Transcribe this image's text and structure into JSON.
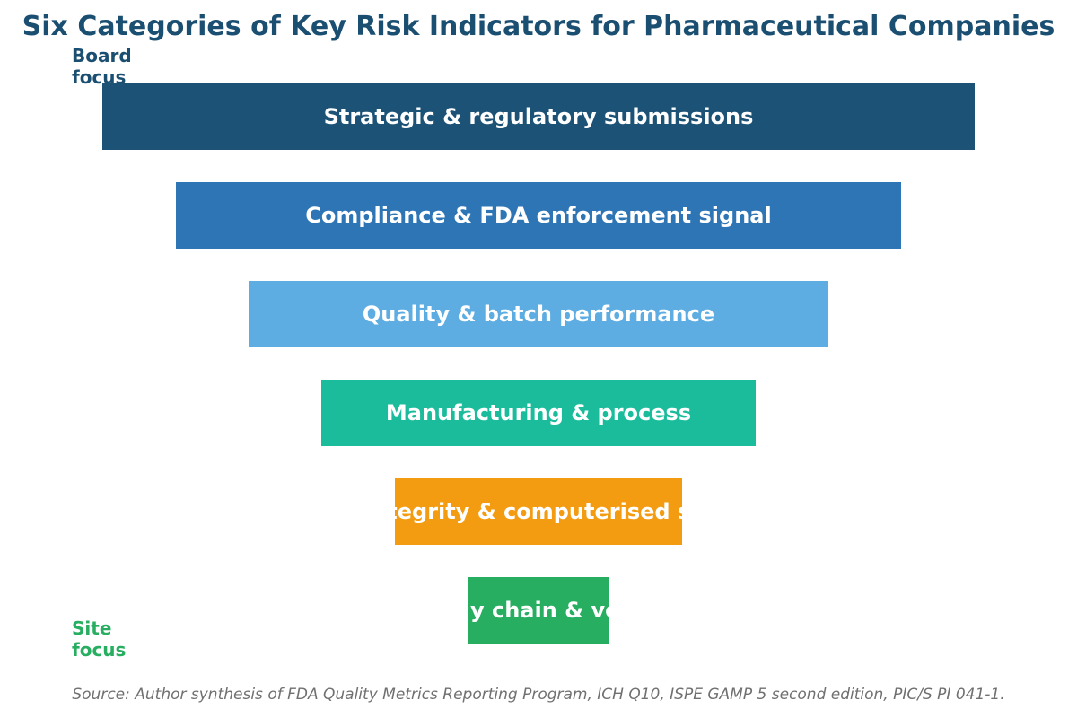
{
  "title": "Six Categories of Key Risk Indicators for Pharmaceutical Companies",
  "top_label": "Board\nfocus",
  "bottom_label": "Site\nfocus",
  "tiers": [
    {
      "label": "Strategic & regulatory submissions",
      "color": "#1b5276"
    },
    {
      "label": "Compliance & FDA enforcement signal",
      "color": "#2e75b6"
    },
    {
      "label": "Quality & batch performance",
      "color": "#5dade2"
    },
    {
      "label": "Manufacturing & process",
      "color": "#1abc9c"
    },
    {
      "label": "Data integrity & computerised systems",
      "color": "#f39c12"
    },
    {
      "label": "Supply chain & vendor",
      "color": "#27ae60"
    }
  ],
  "source": "Source: Author synthesis of FDA Quality Metrics Reporting Program, ICH Q10, ISPE GAMP 5 second edition, PIC/S PI 041-1."
}
